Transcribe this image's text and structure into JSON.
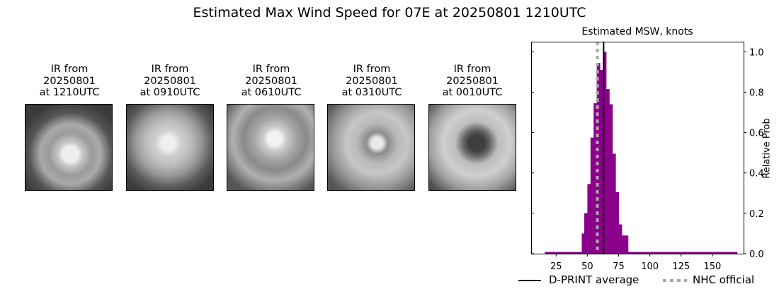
{
  "figure": {
    "title": "Estimated Max Wind Speed for 07E at 20250801 1210UTC"
  },
  "ir_panels": [
    {
      "line1": "IR from",
      "line2": "20250801",
      "line3": "at 1210UTC"
    },
    {
      "line1": "IR from",
      "line2": "20250801",
      "line3": "at 0910UTC"
    },
    {
      "line1": "IR from",
      "line2": "20250801",
      "line3": "at 0610UTC"
    },
    {
      "line1": "IR from",
      "line2": "20250801",
      "line3": "at 0310UTC"
    },
    {
      "line1": "IR from",
      "line2": "20250801",
      "line3": "at 0010UTC"
    }
  ],
  "legend": {
    "dprint_label": "D-PRINT average",
    "nhc_label": "NHC official"
  },
  "colors": {
    "bar": "#8B008B",
    "dprint_line": "#000000",
    "nhc_line": "#A9A9A9"
  },
  "chart_data": {
    "type": "bar",
    "title": "Estimated MSW, knots",
    "xlabel": "",
    "ylabel": "Relative Prob",
    "xlim": [
      5,
      175
    ],
    "ylim": [
      0,
      1.05
    ],
    "xticks": [
      25,
      50,
      75,
      100,
      125,
      150
    ],
    "yticks": [
      0.0,
      0.2,
      0.4,
      0.6,
      0.8,
      1.0
    ],
    "y_axis_position": "right",
    "bin_width": 2.5,
    "bins_left_edges": [
      45.5,
      47.5,
      50.0,
      52.5,
      55.0,
      57.5,
      60.0,
      62.5,
      65.0,
      67.5,
      70.0,
      72.5,
      75.0,
      77.5,
      80.0
    ],
    "values": [
      0.1,
      0.2,
      0.345,
      0.575,
      0.745,
      0.945,
      0.91,
      1.0,
      0.815,
      0.74,
      0.495,
      0.305,
      0.145,
      0.09,
      0.09
    ],
    "tail": {
      "x_start": 16,
      "x_end": 170,
      "value": 0.005
    },
    "dprint_average_knots": 63,
    "nhc_official_knots": 58,
    "legend_entries": [
      "D-PRINT average",
      "NHC official"
    ],
    "legend_position": "below",
    "grid": false
  }
}
